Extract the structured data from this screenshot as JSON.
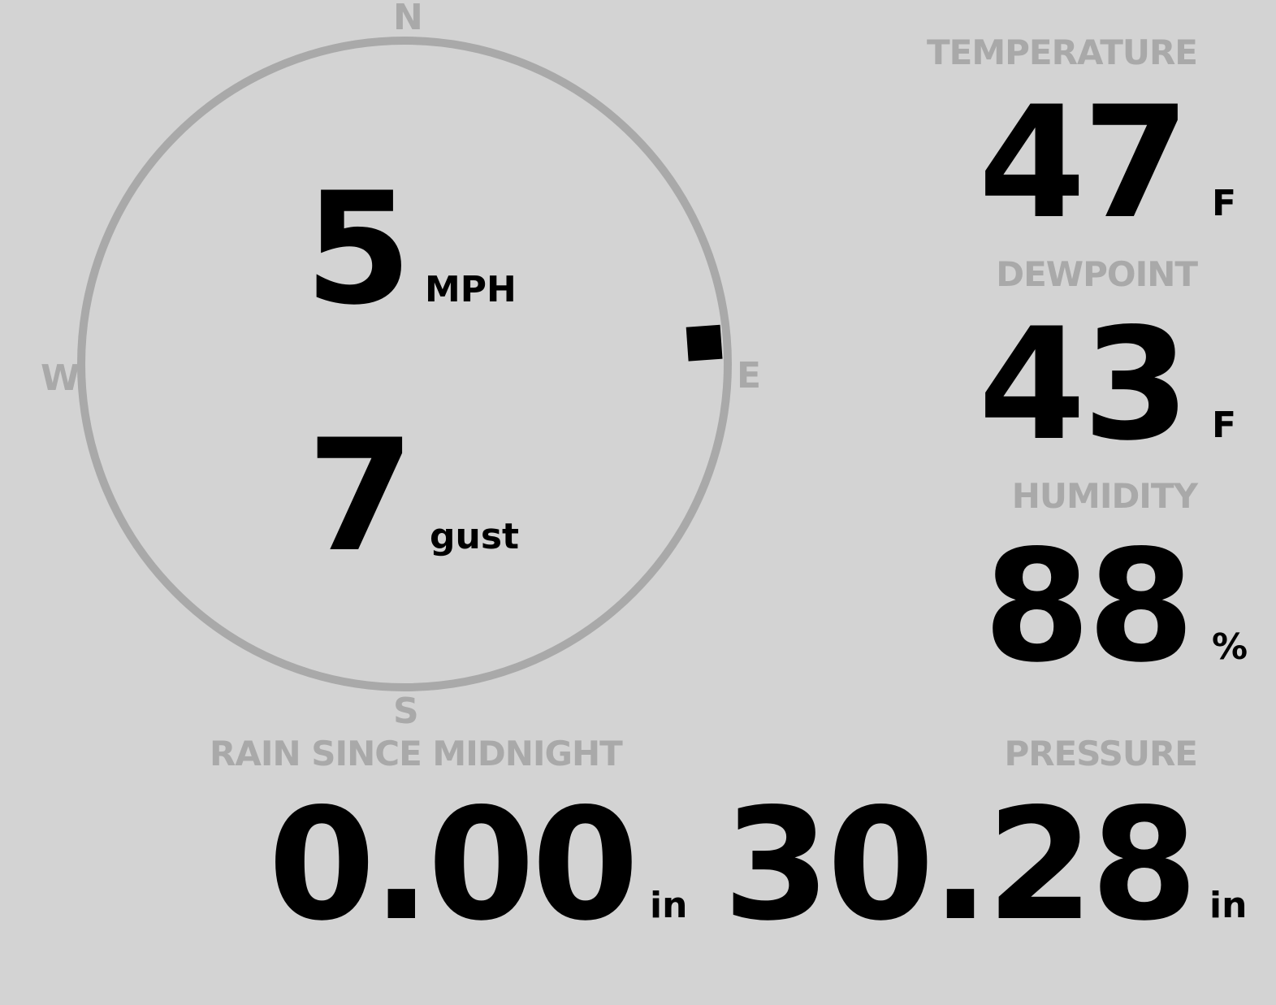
{
  "colors": {
    "background": "#d3d3d3",
    "label": "#a9a9a9",
    "value": "#000000"
  },
  "wind": {
    "speed": "5",
    "speed_unit": "MPH",
    "gust": "7",
    "gust_unit": "gust",
    "direction_deg": 86,
    "cardinals": {
      "n": "N",
      "e": "E",
      "s": "S",
      "w": "W"
    }
  },
  "temperature": {
    "label": "TEMPERATURE",
    "value": "47",
    "unit": "F"
  },
  "dewpoint": {
    "label": "DEWPOINT",
    "value": "43",
    "unit": "F"
  },
  "humidity": {
    "label": "HUMIDITY",
    "value": "88",
    "unit": "%"
  },
  "rain": {
    "label": "RAIN SINCE MIDNIGHT",
    "value": "0.00",
    "unit": "in"
  },
  "pressure": {
    "label": "PRESSURE",
    "value": "30.28",
    "unit": "in"
  }
}
